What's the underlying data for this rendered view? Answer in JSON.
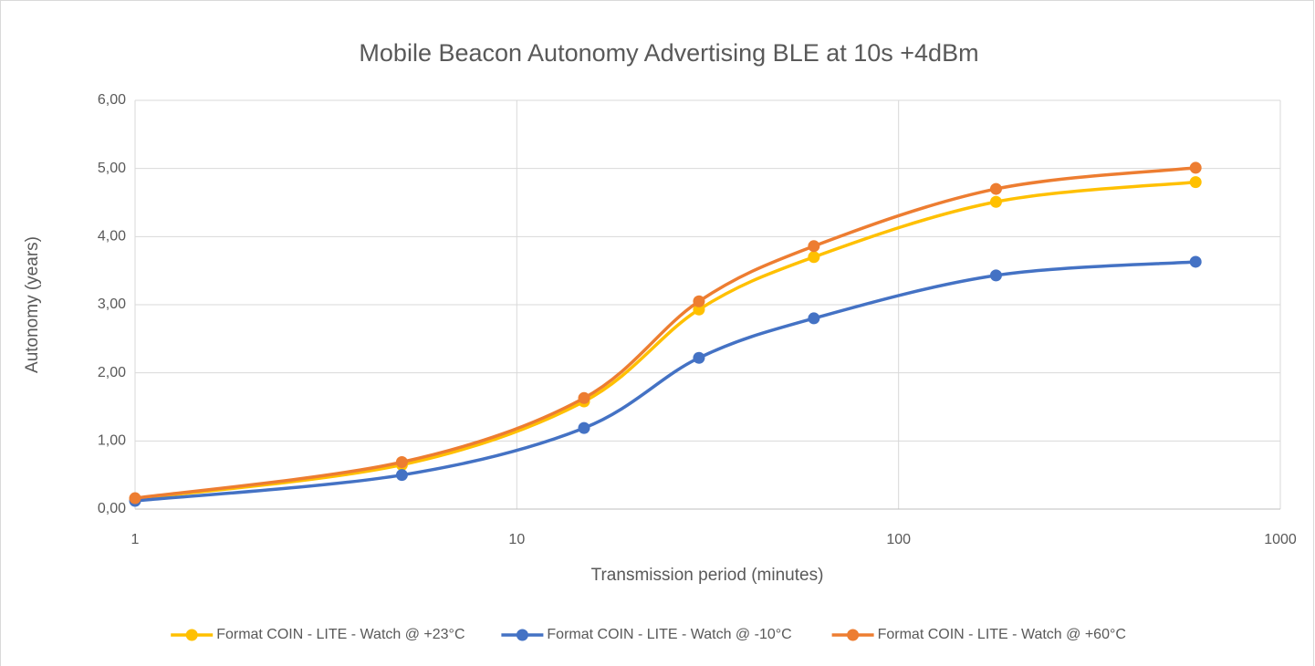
{
  "chart_data": {
    "type": "line",
    "title": "Mobile Beacon Autonomy Advertising BLE at 10s +4dBm",
    "x_label": "Transmission period (minutes)",
    "y_label": "Autonomy (years)",
    "x": [
      1,
      5,
      15,
      30,
      60,
      180,
      600
    ],
    "x_log": true,
    "xlim": [
      1,
      1000
    ],
    "xticks": [
      1,
      10,
      100,
      1000
    ],
    "ylim": [
      0,
      6
    ],
    "yticks": [
      {
        "value": 0,
        "label": "0,00"
      },
      {
        "value": 1,
        "label": "1,00"
      },
      {
        "value": 2,
        "label": "2,00"
      },
      {
        "value": 3,
        "label": "3,00"
      },
      {
        "value": 4,
        "label": "4,00"
      },
      {
        "value": 5,
        "label": "5,00"
      },
      {
        "value": 6,
        "label": "6,00"
      }
    ],
    "grid": true,
    "smooth": true,
    "legend": "bottom",
    "series": [
      {
        "name": "Format COIN - LITE - Watch @ +23°C",
        "color": "#ffc000",
        "values": [
          0.15,
          0.65,
          1.58,
          2.93,
          3.7,
          4.51,
          4.8
        ]
      },
      {
        "name": "Format COIN - LITE - Watch @ -10°C",
        "color": "#4472c4",
        "values": [
          0.12,
          0.5,
          1.19,
          2.22,
          2.8,
          3.43,
          3.63
        ]
      },
      {
        "name": "Format COIN - LITE - Watch @ +60°C",
        "color": "#ed7d31",
        "values": [
          0.16,
          0.69,
          1.63,
          3.05,
          3.86,
          4.7,
          5.01
        ]
      }
    ]
  }
}
